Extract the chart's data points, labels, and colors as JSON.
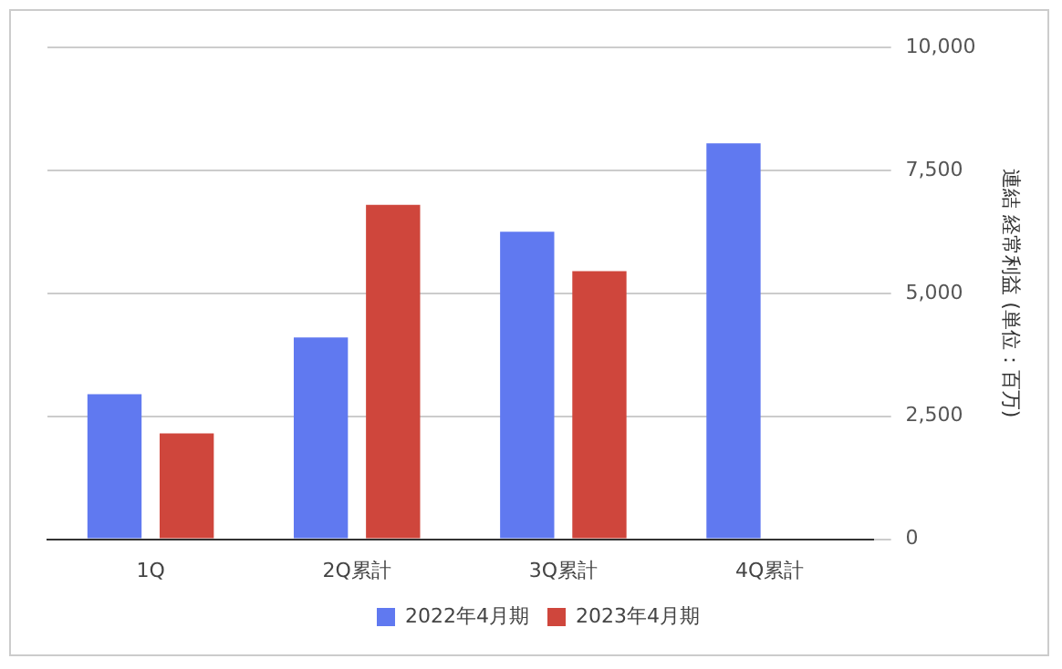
{
  "chart_data": {
    "type": "bar",
    "categories": [
      "1Q",
      "2Q累計",
      "3Q累計",
      "4Q累計"
    ],
    "series": [
      {
        "name": "2022年4月期",
        "color": "#6079f0",
        "values": [
          2950,
          4100,
          6250,
          8050
        ]
      },
      {
        "name": "2023年4月期",
        "color": "#cf463c",
        "values": [
          2150,
          6800,
          5450,
          null
        ]
      }
    ],
    "ylabel": "連結 経常利益 (単位：百万)",
    "ylim": [
      0,
      10000
    ],
    "yticks": [
      0,
      {
        "value": 2500,
        "label": "2,500"
      },
      {
        "value": 5000,
        "label": "5,000"
      },
      {
        "value": 7500,
        "label": "7,500"
      },
      {
        "value": 10000,
        "label": "10,000"
      }
    ],
    "grid": "y",
    "legend": "bottom"
  }
}
